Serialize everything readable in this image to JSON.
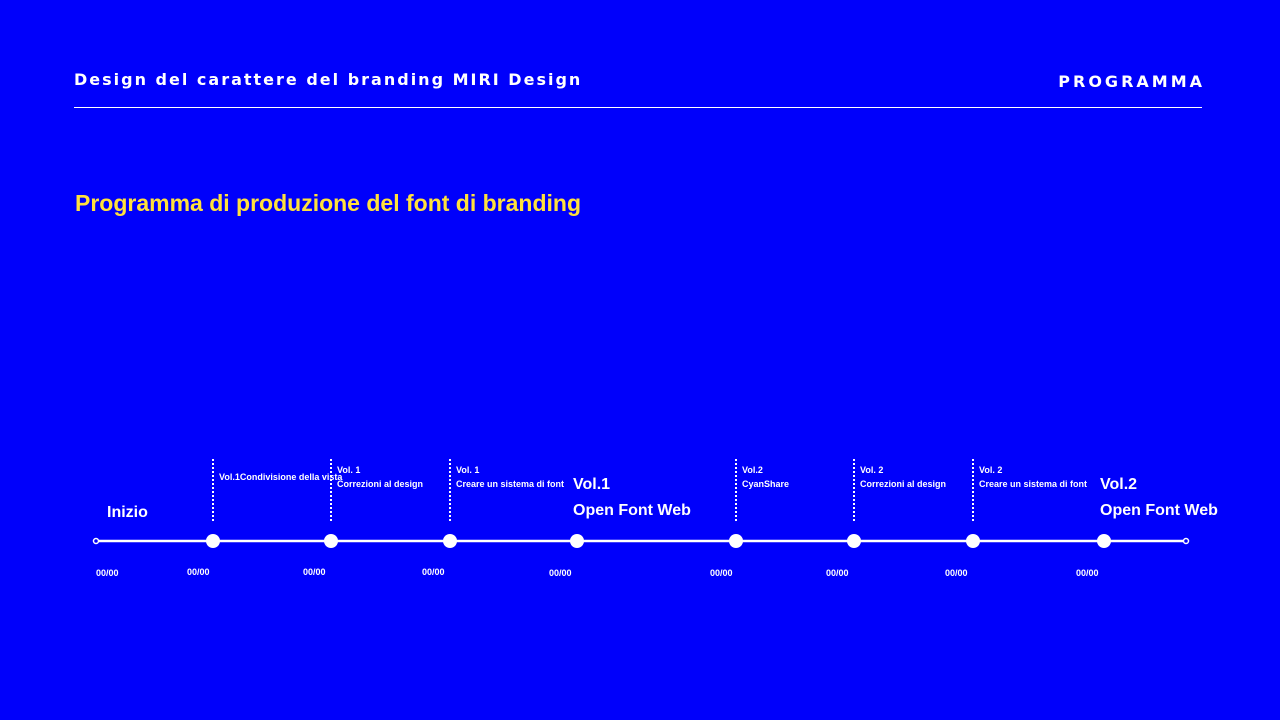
{
  "header": {
    "title": "Design del carattere del branding MIRI Design",
    "section": "PROGRAMMA"
  },
  "heading": "Programma di produzione del font di branding",
  "timeline": {
    "milestones": [
      {
        "lines": [
          "Inizio"
        ],
        "date": "00/00"
      },
      {
        "lines": [
          "Vol.1Condivisione della vista"
        ],
        "date": "00/00"
      },
      {
        "lines": [
          "Vol. 1",
          "Correzioni al design"
        ],
        "date": "00/00"
      },
      {
        "lines": [
          "Vol. 1",
          "Creare un sistema di font"
        ],
        "date": "00/00"
      },
      {
        "lines": [
          "Vol.1",
          "Open Font Web"
        ],
        "date": "00/00"
      },
      {
        "lines": [
          "Vol.2",
          "CyanShare"
        ],
        "date": "00/00"
      },
      {
        "lines": [
          "Vol. 2",
          "Correzioni al design"
        ],
        "date": "00/00"
      },
      {
        "lines": [
          "Vol. 2",
          "Creare un sistema di font"
        ],
        "date": "00/00"
      },
      {
        "lines": [
          "Vol.2",
          "Open Font Web"
        ],
        "date": "00/00"
      }
    ]
  }
}
